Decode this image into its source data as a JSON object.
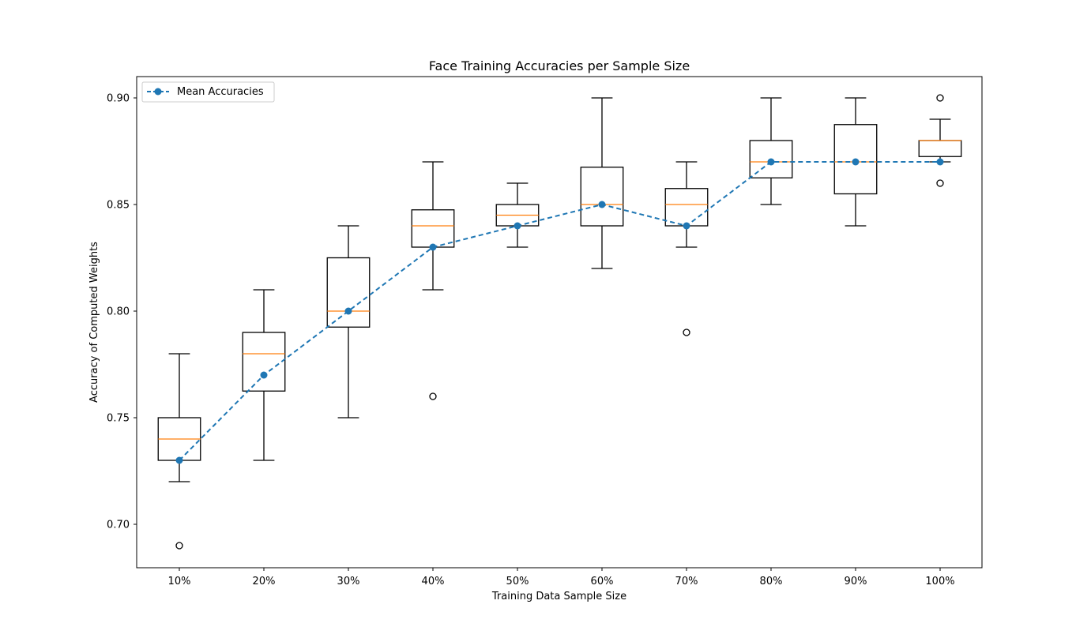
{
  "chart_data": {
    "type": "box",
    "title": "Face Training Accuracies per Sample Size",
    "xlabel": "Training Data Sample Size",
    "ylabel": "Accuracy of Computed Weights",
    "categories": [
      "10%",
      "20%",
      "30%",
      "40%",
      "50%",
      "60%",
      "70%",
      "80%",
      "90%",
      "100%"
    ],
    "ylim": [
      0.68,
      0.91
    ],
    "yticks": [
      0.7,
      0.75,
      0.8,
      0.85,
      0.9
    ],
    "ytick_labels": [
      "0.70",
      "0.75",
      "0.80",
      "0.85",
      "0.90"
    ],
    "grid": false,
    "legend": {
      "placement": "top-left",
      "entries": [
        "Mean Accuracies"
      ]
    },
    "boxes": [
      {
        "category": "10%",
        "whislo": 0.72,
        "q1": 0.73,
        "med": 0.74,
        "q3": 0.75,
        "whishi": 0.78,
        "fliers": [
          0.69
        ]
      },
      {
        "category": "20%",
        "whislo": 0.73,
        "q1": 0.7625,
        "med": 0.78,
        "q3": 0.79,
        "whishi": 0.81,
        "fliers": []
      },
      {
        "category": "30%",
        "whislo": 0.75,
        "q1": 0.7925,
        "med": 0.8,
        "q3": 0.825,
        "whishi": 0.84,
        "fliers": []
      },
      {
        "category": "40%",
        "whislo": 0.81,
        "q1": 0.83,
        "med": 0.84,
        "q3": 0.8475,
        "whishi": 0.87,
        "fliers": [
          0.76
        ]
      },
      {
        "category": "50%",
        "whislo": 0.83,
        "q1": 0.84,
        "med": 0.845,
        "q3": 0.85,
        "whishi": 0.86,
        "fliers": []
      },
      {
        "category": "60%",
        "whislo": 0.82,
        "q1": 0.84,
        "med": 0.85,
        "q3": 0.8675,
        "whishi": 0.9,
        "fliers": []
      },
      {
        "category": "70%",
        "whislo": 0.83,
        "q1": 0.84,
        "med": 0.85,
        "q3": 0.8575,
        "whishi": 0.87,
        "fliers": [
          0.79
        ]
      },
      {
        "category": "80%",
        "whislo": 0.85,
        "q1": 0.8625,
        "med": 0.87,
        "q3": 0.88,
        "whishi": 0.9,
        "fliers": []
      },
      {
        "category": "90%",
        "whislo": 0.84,
        "q1": 0.855,
        "med": 0.87,
        "q3": 0.8875,
        "whishi": 0.9,
        "fliers": []
      },
      {
        "category": "100%",
        "whislo": 0.87,
        "q1": 0.8725,
        "med": 0.88,
        "q3": 0.88,
        "whishi": 0.89,
        "fliers": [
          0.9,
          0.86
        ]
      }
    ],
    "series": [
      {
        "name": "Mean Accuracies",
        "type": "line",
        "style": "dashed",
        "marker": "circle",
        "values": [
          0.73,
          0.77,
          0.8,
          0.83,
          0.84,
          0.85,
          0.84,
          0.87,
          0.87,
          0.87
        ]
      }
    ],
    "colors": {
      "mean_line": "#1f77b4",
      "median": "#ff7f0e",
      "box": "#000000"
    }
  }
}
